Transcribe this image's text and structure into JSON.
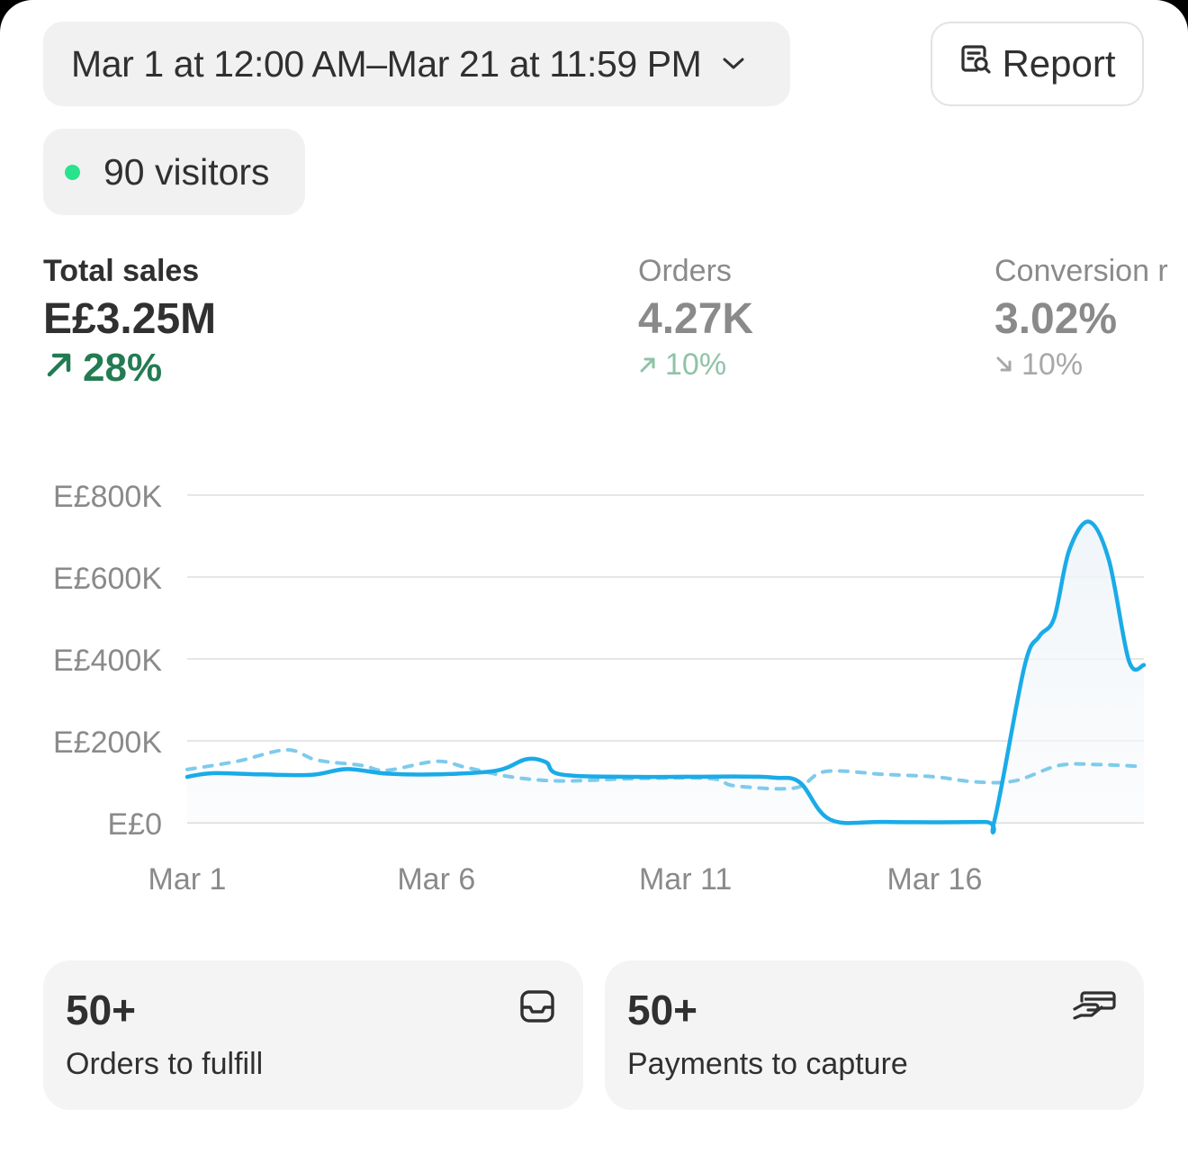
{
  "header": {
    "date_range": "Mar 1 at 12:00 AM–Mar 21 at 11:59 PM",
    "report_label": "Report",
    "visitors_label": "90 visitors"
  },
  "metrics": [
    {
      "label": "Total sales",
      "value": "E£3.25M",
      "change": "28%",
      "direction": "up",
      "color": "#237b52"
    },
    {
      "label": "Orders",
      "value": "4.27K",
      "change": "10%",
      "direction": "up",
      "color": "#8fc3a8"
    },
    {
      "label": "Conversion r",
      "value": "3.02%",
      "change": "10%",
      "direction": "down",
      "color": "#a8a8a8"
    }
  ],
  "chart_data": {
    "type": "line",
    "ylim": [
      0,
      800000
    ],
    "y_ticks": [
      "E£800K",
      "E£600K",
      "E£400K",
      "E£200K",
      "E£0"
    ],
    "x_ticks": [
      "Mar 1",
      "Mar 6",
      "Mar 11",
      "Mar 16"
    ],
    "grid": true,
    "series": [
      {
        "style": "solid",
        "color": "#1aabe8",
        "values": [
          [
            1,
            112000
          ],
          [
            1.5,
            121000
          ],
          [
            2.5,
            118000
          ],
          [
            3.5,
            117000
          ],
          [
            4.2,
            131000
          ],
          [
            5,
            120000
          ],
          [
            6,
            118000
          ],
          [
            7.2,
            127000
          ],
          [
            7.8,
            155000
          ],
          [
            8.2,
            148000
          ],
          [
            8.5,
            118000
          ],
          [
            10,
            112000
          ],
          [
            12,
            113000
          ],
          [
            12.8,
            110000
          ],
          [
            13.3,
            98000
          ],
          [
            13.9,
            8000
          ],
          [
            15,
            2000
          ],
          [
            17,
            2000
          ],
          [
            17.2,
            5000
          ],
          [
            17.8,
            380000
          ],
          [
            18.1,
            455000
          ],
          [
            18.4,
            500000
          ],
          [
            18.7,
            665000
          ],
          [
            19.1,
            735000
          ],
          [
            19.5,
            640000
          ],
          [
            19.9,
            395000
          ],
          [
            20.2,
            385000
          ]
        ]
      },
      {
        "style": "dashed",
        "color": "#7ecbec",
        "values": [
          [
            1,
            130000
          ],
          [
            2,
            150000
          ],
          [
            3,
            178000
          ],
          [
            3.6,
            153000
          ],
          [
            4.5,
            140000
          ],
          [
            5,
            128000
          ],
          [
            6,
            150000
          ],
          [
            6.6,
            135000
          ],
          [
            7.5,
            112000
          ],
          [
            8.5,
            102000
          ],
          [
            10,
            108000
          ],
          [
            11.5,
            108000
          ],
          [
            12,
            90000
          ],
          [
            13.2,
            85000
          ],
          [
            13.8,
            125000
          ],
          [
            15,
            118000
          ],
          [
            16,
            112000
          ],
          [
            16.8,
            100000
          ],
          [
            17.6,
            102000
          ],
          [
            18.5,
            140000
          ],
          [
            19.3,
            142000
          ],
          [
            20.2,
            137000
          ]
        ]
      }
    ]
  },
  "cards": [
    {
      "value": "50+",
      "label": "Orders to fulfill",
      "icon": "inbox-icon"
    },
    {
      "value": "50+",
      "label": "Payments to capture",
      "icon": "card-payment-icon"
    }
  ]
}
